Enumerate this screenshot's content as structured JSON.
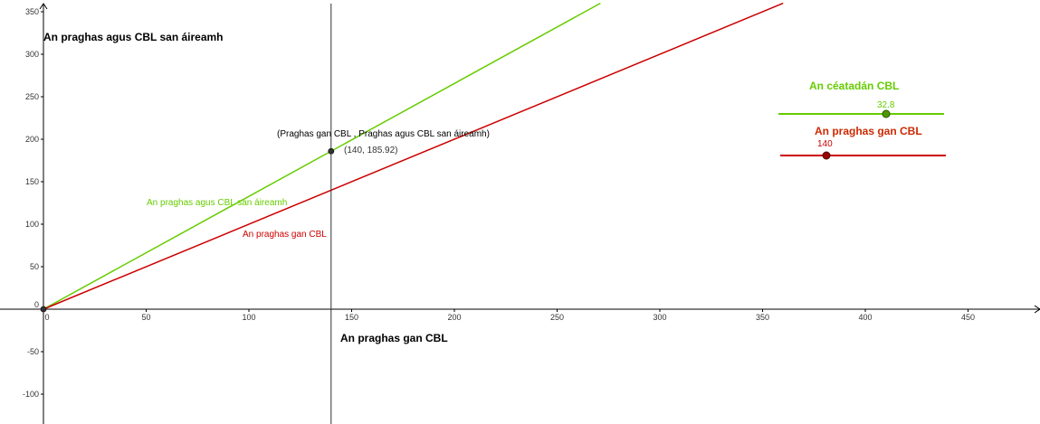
{
  "chart_data": {
    "type": "line",
    "x_axis": {
      "label": "An praghas gan CBL",
      "range": [
        -2,
        473
      ],
      "ticks": [
        0,
        50,
        100,
        150,
        200,
        250,
        300,
        350,
        400,
        450
      ]
    },
    "y_axis": {
      "label": "An praghas agus CBL san áireamh",
      "range": [
        -135,
        360
      ],
      "ticks": [
        -100,
        -50,
        0,
        50,
        100,
        150,
        200,
        250,
        300,
        350
      ]
    },
    "series": [
      {
        "name": "An praghas agus CBL san áireamh",
        "slope": 1.328,
        "intercept": 0,
        "color": "#66cc00"
      },
      {
        "name": "An praghas gan CBL",
        "slope": 1.0,
        "intercept": 0,
        "color": "#cc0000"
      }
    ],
    "vertical_line": {
      "x": 140
    },
    "point": {
      "x": 140,
      "y": 185.92,
      "coord_label": "(140, 185.92)",
      "caption": "(Praghas gan CBL , Praghas agus CBL san áireamh)"
    },
    "origin_point": {
      "x": 0,
      "y": 0
    }
  },
  "sliders": {
    "vat_rate": {
      "title": "An céatadán CBL",
      "value": "32.8",
      "color": "#66cc00"
    },
    "price": {
      "title": "An praghas gan CBL",
      "value": "140",
      "color": "#cc0000"
    }
  }
}
